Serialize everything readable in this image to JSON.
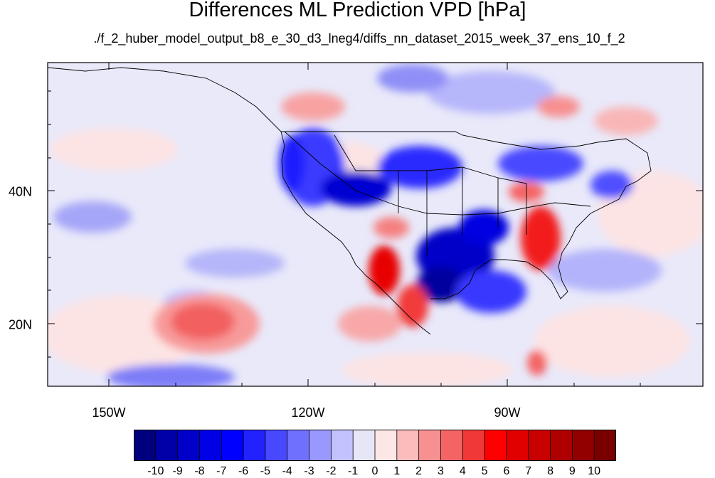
{
  "title": "Differences ML Prediction VPD [hPa]",
  "subtitle": "./f_2_huber_model_output_b8_e_30_d3_lneg4/diffs_nn_dataset_2015_week_37_ens_10_f_2",
  "map": {
    "lon_labels": [
      "150W",
      "120W",
      "90W"
    ],
    "lat_labels": [
      "40N",
      "20N"
    ]
  },
  "colorbar": {
    "labels": [
      "-10",
      "-9",
      "-8",
      "-7",
      "-6",
      "-5",
      "-4",
      "-3",
      "-2",
      "-1",
      "0",
      "1",
      "2",
      "3",
      "4",
      "5",
      "6",
      "7",
      "8",
      "9",
      "10"
    ],
    "colors": [
      "#00007e",
      "#0000a8",
      "#0000c8",
      "#0000e6",
      "#0000ff",
      "#2222ff",
      "#4848ff",
      "#7070ff",
      "#9898ff",
      "#c2c2ff",
      "#e6e6f7",
      "#fde6e6",
      "#fbbcbc",
      "#f79090",
      "#f46464",
      "#f13838",
      "#ff0000",
      "#e00000",
      "#c80000",
      "#ae0000",
      "#920000",
      "#7a0000"
    ]
  }
}
